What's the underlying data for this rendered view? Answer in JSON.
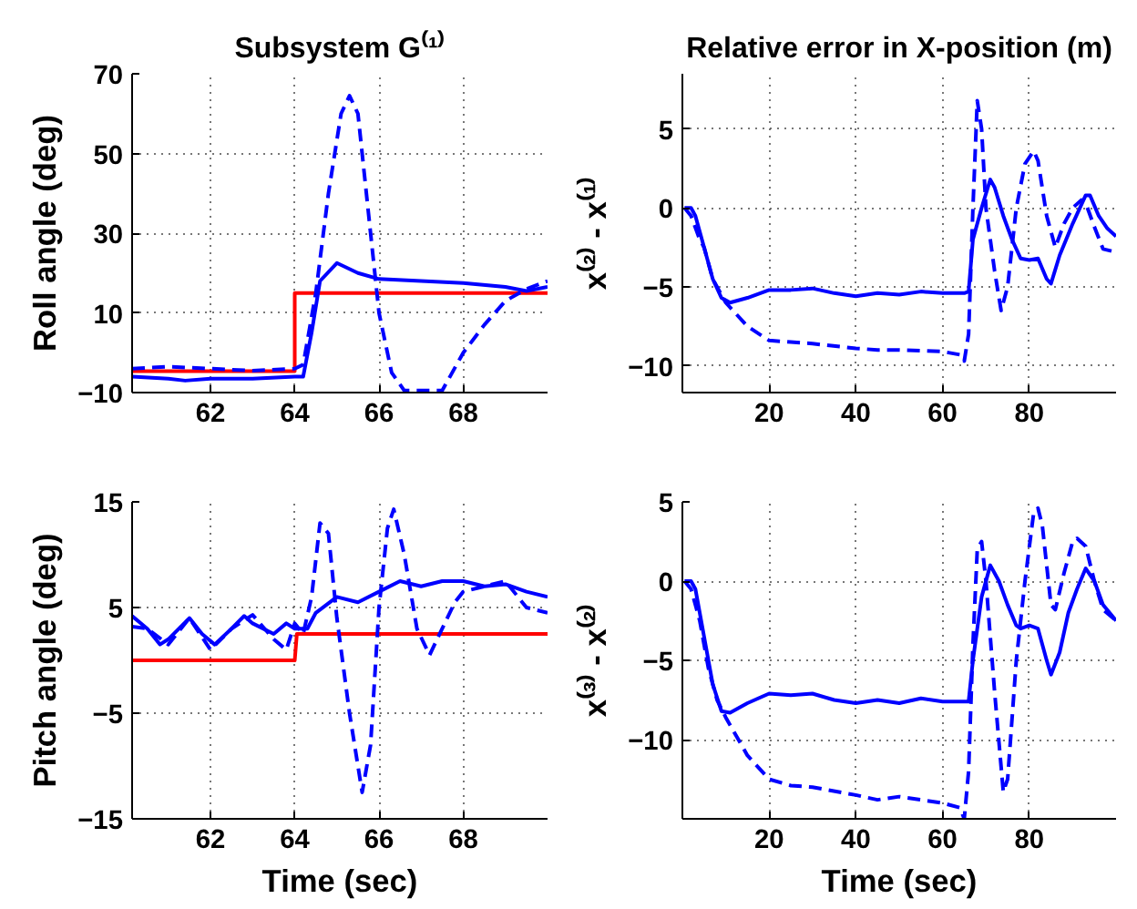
{
  "chart_data": [
    {
      "type": "line",
      "title": "Subsystem G⁽¹⁾",
      "ylabel": "Roll angle (deg)",
      "xlim": [
        60.14,
        70
      ],
      "ylim": [
        -10,
        70
      ],
      "xticks": [
        62,
        64,
        66,
        68
      ],
      "yticks": [
        -10,
        10,
        30,
        50,
        70
      ],
      "grid": true,
      "series": [
        {
          "color": "#ff0000",
          "line_style": "solid",
          "x": [
            60.14,
            64,
            64,
            70
          ],
          "values": [
            -4.6,
            -4.6,
            15,
            15
          ]
        },
        {
          "color": "#0000ff",
          "line_style": "solid",
          "x": [
            60.14,
            61,
            61.4,
            62,
            63,
            64,
            64.2,
            64.4,
            64.6,
            65,
            65.5,
            66,
            67,
            68,
            69,
            69.5,
            70
          ],
          "values": [
            -6,
            -6.5,
            -7,
            -6.5,
            -6.5,
            -6,
            -6,
            5,
            18,
            22.5,
            20,
            18.5,
            18,
            17.5,
            16.5,
            15.5,
            16.5
          ]
        },
        {
          "color": "#0000ff",
          "line_style": "dashed",
          "x": [
            60.14,
            61,
            62,
            63,
            64,
            64.2,
            64.5,
            64.8,
            65.1,
            65.3,
            65.5,
            65.8,
            66,
            66.3,
            66.6,
            67,
            67.5,
            68,
            68.5,
            69,
            69.5,
            70
          ],
          "values": [
            -4,
            -3.5,
            -4,
            -4.5,
            -4,
            -3,
            15,
            40,
            60,
            64.5,
            60,
            30,
            10,
            -5,
            -9.5,
            -9.5,
            -9.5,
            0,
            7,
            13,
            16,
            18
          ]
        }
      ]
    },
    {
      "type": "line",
      "title": "Relative error in X-position (m)",
      "ylabel": "x⁽²⁾ - x⁽¹⁾",
      "xlim": [
        0,
        100
      ],
      "ylim": [
        -11.7,
        8.5
      ],
      "xticks": [
        20,
        40,
        60,
        80
      ],
      "yticks": [
        -10,
        -5,
        0,
        5
      ],
      "grid": true,
      "series": [
        {
          "color": "#0000ff",
          "line_style": "solid",
          "x": [
            0.5,
            2,
            3,
            5,
            7,
            9,
            11,
            15,
            20,
            25,
            30,
            35,
            40,
            45,
            50,
            55,
            60,
            65,
            66,
            67,
            69,
            71,
            72,
            74,
            76,
            78,
            80,
            82,
            84,
            85,
            87,
            90,
            93,
            94,
            96,
            98,
            100
          ],
          "values": [
            0,
            0,
            -0.5,
            -2.5,
            -4.5,
            -5.7,
            -6,
            -5.7,
            -5.2,
            -5.2,
            -5.1,
            -5.4,
            -5.6,
            -5.4,
            -5.5,
            -5.3,
            -5.4,
            -5.4,
            -5.3,
            -2,
            0,
            1.8,
            1.3,
            -0.5,
            -2,
            -3.2,
            -3.3,
            -3.2,
            -4.5,
            -4.8,
            -3,
            -1,
            0.8,
            0.8,
            -0.5,
            -1.3,
            -1.8
          ]
        },
        {
          "color": "#0000ff",
          "line_style": "dashed",
          "x": [
            0.5,
            2,
            4,
            5,
            7,
            10,
            15,
            20,
            25,
            30,
            40,
            45,
            50,
            60,
            64,
            65,
            66,
            67,
            68,
            69,
            70,
            72,
            73.5,
            75,
            77,
            79,
            81,
            82,
            84,
            86,
            88,
            90,
            92,
            93,
            95,
            97,
            100
          ],
          "values": [
            0,
            -0.5,
            -2,
            -2.5,
            -4.5,
            -6,
            -7.5,
            -8.4,
            -8.5,
            -8.6,
            -8.9,
            -9,
            -9,
            -9.1,
            -9.3,
            -9.7,
            -8,
            0,
            6.8,
            5,
            0,
            -4,
            -6.5,
            -5,
            0,
            2.8,
            3.6,
            3,
            -0.5,
            -2.5,
            -1,
            0,
            0.5,
            0.3,
            -1.2,
            -2.6,
            -2.8
          ]
        }
      ]
    },
    {
      "type": "line",
      "ylabel": "Pitch angle (deg)",
      "xlabel": "Time (sec)",
      "xlim": [
        60.14,
        70
      ],
      "ylim": [
        -15,
        15
      ],
      "xticks": [
        62,
        64,
        66,
        68
      ],
      "yticks": [
        -15,
        -5,
        5,
        15
      ],
      "grid": true,
      "series": [
        {
          "color": "#ff0000",
          "line_style": "solid",
          "x": [
            60.14,
            64,
            64.05,
            70
          ],
          "values": [
            0,
            0,
            2.5,
            2.5
          ]
        },
        {
          "color": "#0000ff",
          "line_style": "solid",
          "x": [
            60.14,
            60.5,
            60.8,
            61,
            61.5,
            61.8,
            62.1,
            62.5,
            62.8,
            63,
            63.5,
            63.8,
            64,
            64.3,
            64.5,
            65,
            65.5,
            66,
            66.5,
            67,
            67.5,
            68,
            68.5,
            69,
            69.5,
            70
          ],
          "values": [
            4.2,
            3,
            1.5,
            2,
            4,
            2.5,
            1.5,
            3,
            4.2,
            3.5,
            2.5,
            3.5,
            3,
            3,
            4.5,
            6,
            5.5,
            6.5,
            7.5,
            7,
            7.5,
            7.5,
            7,
            7.2,
            6.5,
            6
          ]
        },
        {
          "color": "#0000ff",
          "line_style": "dashed",
          "x": [
            60.14,
            60.5,
            61,
            61.5,
            62,
            62.5,
            63,
            63.5,
            63.8,
            64,
            64.2,
            64.4,
            64.6,
            64.8,
            65,
            65.3,
            65.6,
            65.8,
            66,
            66.2,
            66.35,
            66.6,
            66.9,
            67.2,
            67.5,
            67.8,
            68,
            68.5,
            69,
            69.5,
            70
          ],
          "values": [
            3.2,
            3,
            1.5,
            4,
            1,
            3,
            4.3,
            2,
            1,
            3.5,
            2.5,
            6,
            13,
            12,
            4,
            -5,
            -12.5,
            -8,
            5,
            12.5,
            14.3,
            10,
            3,
            0.5,
            3,
            5.5,
            6.5,
            7,
            7.5,
            5,
            4.5
          ]
        }
      ]
    },
    {
      "type": "line",
      "ylabel": "x⁽³⁾ - x⁽²⁾",
      "xlabel": "Time (sec)",
      "xlim": [
        0,
        100
      ],
      "ylim": [
        -15,
        5
      ],
      "xticks": [
        20,
        40,
        60,
        80
      ],
      "yticks": [
        -10,
        -5,
        0,
        5
      ],
      "grid": true,
      "series": [
        {
          "color": "#0000ff",
          "line_style": "solid",
          "x": [
            0.5,
            2,
            3,
            5,
            7,
            9,
            11,
            15,
            20,
            25,
            30,
            35,
            40,
            45,
            50,
            55,
            60,
            66,
            67,
            69,
            71,
            73,
            75,
            77,
            78,
            80,
            82,
            84,
            85,
            87,
            89,
            91,
            93,
            95,
            97,
            100
          ],
          "values": [
            0,
            0,
            -0.5,
            -3.5,
            -6.5,
            -8.2,
            -8.3,
            -7.7,
            -7.1,
            -7.2,
            -7.1,
            -7.5,
            -7.7,
            -7.5,
            -7.7,
            -7.4,
            -7.6,
            -7.6,
            -5,
            -1,
            1,
            0,
            -1.5,
            -2.8,
            -3,
            -2.8,
            -3,
            -5,
            -5.9,
            -4.5,
            -2,
            -0.5,
            0.8,
            0,
            -1.5,
            -2.5
          ]
        },
        {
          "color": "#0000ff",
          "line_style": "dashed",
          "x": [
            0.5,
            2,
            4,
            6,
            8,
            10,
            15,
            20,
            25,
            30,
            40,
            45,
            50,
            60,
            64,
            65,
            66,
            67,
            68,
            69,
            70,
            72,
            74,
            75,
            77,
            79,
            81,
            82,
            83,
            85,
            86,
            88,
            90,
            91,
            93,
            95,
            97,
            100
          ],
          "values": [
            0,
            -0.5,
            -2.5,
            -5.5,
            -7.5,
            -8.6,
            -11,
            -12.5,
            -12.9,
            -13,
            -13.5,
            -13.8,
            -13.6,
            -14,
            -14.3,
            -15,
            -12,
            -4,
            2,
            2.5,
            0,
            -7,
            -13.3,
            -12.5,
            -5,
            0,
            4.3,
            4.6,
            3.5,
            -1.5,
            -1.8,
            0.5,
            2.5,
            2.7,
            2.2,
            0,
            -1.8,
            -2.5
          ]
        }
      ]
    }
  ]
}
